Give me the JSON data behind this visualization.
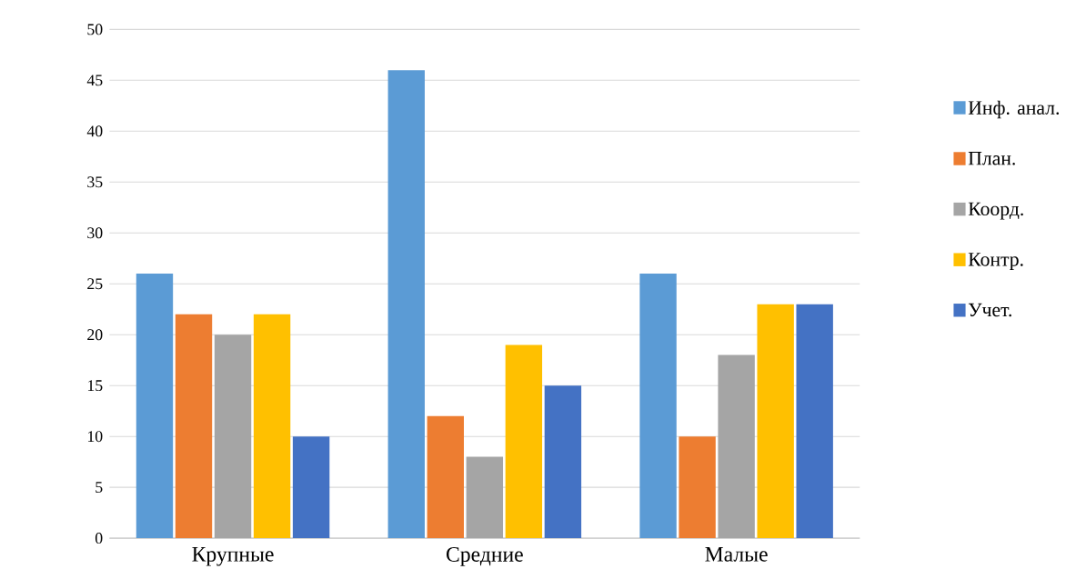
{
  "chart_data": {
    "type": "bar",
    "categories": [
      "Крупные",
      "Средние",
      "Малые"
    ],
    "series": [
      {
        "name": "Инф. анал.",
        "color": "#5b9bd5",
        "values": [
          26,
          46,
          26
        ]
      },
      {
        "name": "План.",
        "color": "#ed7d31",
        "values": [
          22,
          12,
          10
        ]
      },
      {
        "name": "Коорд.",
        "color": "#a5a5a5",
        "values": [
          20,
          8,
          18
        ]
      },
      {
        "name": "Контр.",
        "color": "#ffc000",
        "values": [
          22,
          19,
          23
        ]
      },
      {
        "name": "Учет.",
        "color": "#4472c4",
        "values": [
          10,
          15,
          23
        ]
      }
    ],
    "ylim": [
      0,
      50
    ],
    "yticks": [
      0,
      5,
      10,
      15,
      20,
      25,
      30,
      35,
      40,
      45,
      50
    ],
    "grid": "y",
    "legend": "right"
  }
}
